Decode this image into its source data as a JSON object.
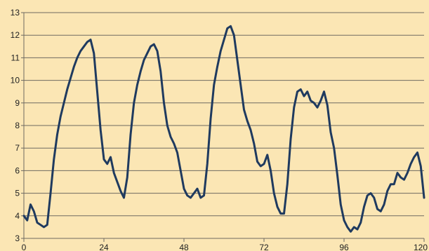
{
  "chart_data": {
    "type": "line",
    "title": "",
    "xlabel": "",
    "ylabel": "",
    "xlim": [
      0,
      120
    ],
    "ylim": [
      3,
      13
    ],
    "x_ticks": [
      {
        "value": 0,
        "label": "0"
      },
      {
        "value": 24,
        "label": "24"
      },
      {
        "value": 48,
        "label": "48"
      },
      {
        "value": 72,
        "label": "72"
      },
      {
        "value": 96,
        "label": "96"
      },
      {
        "value": 120,
        "label": "120"
      }
    ],
    "y_ticks": [
      {
        "value": 3,
        "label": "3"
      },
      {
        "value": 4,
        "label": "4"
      },
      {
        "value": 5,
        "label": "5"
      },
      {
        "value": 6,
        "label": "6"
      },
      {
        "value": 7,
        "label": "7"
      },
      {
        "value": 8,
        "label": "8"
      },
      {
        "value": 9,
        "label": "9"
      },
      {
        "value": 10,
        "label": "10"
      },
      {
        "value": 11,
        "label": "11"
      },
      {
        "value": 12,
        "label": "12"
      },
      {
        "value": 13,
        "label": "13"
      }
    ],
    "grid": true,
    "legend": "none",
    "colors": {
      "background": "#fbe6b4",
      "series": "#1f3a5f",
      "grid": "#6f6a61"
    },
    "series": [
      {
        "x": [
          0,
          1,
          2,
          3,
          4,
          5,
          6,
          7,
          8,
          9,
          10,
          11,
          12,
          13,
          14,
          15,
          16,
          17,
          18,
          19,
          20,
          21,
          22,
          23,
          24,
          25,
          26,
          27,
          28,
          29,
          30,
          31,
          32,
          33,
          34,
          35,
          36,
          37,
          38,
          39,
          40,
          41,
          42,
          43,
          44,
          45,
          46,
          47,
          48,
          49,
          50,
          51,
          52,
          53,
          54,
          55,
          56,
          57,
          58,
          59,
          60,
          61,
          62,
          63,
          64,
          65,
          66,
          67,
          68,
          69,
          70,
          71,
          72,
          73,
          74,
          75,
          76,
          77,
          78,
          79,
          80,
          81,
          82,
          83,
          84,
          85,
          86,
          87,
          88,
          89,
          90,
          91,
          92,
          93,
          94,
          95,
          96,
          97,
          98,
          99,
          100,
          101,
          102,
          103,
          104,
          105,
          106,
          107,
          108,
          109,
          110,
          111,
          112,
          113,
          114,
          115,
          116,
          117,
          118,
          119,
          120
        ],
        "values": [
          4.0,
          3.8,
          4.5,
          4.2,
          3.7,
          3.6,
          3.5,
          3.6,
          5.0,
          6.5,
          7.6,
          8.4,
          9.0,
          9.6,
          10.1,
          10.6,
          11.0,
          11.3,
          11.5,
          11.7,
          11.8,
          11.2,
          9.5,
          7.8,
          6.5,
          6.3,
          6.6,
          5.9,
          5.5,
          5.1,
          4.8,
          5.7,
          7.6,
          9.0,
          9.8,
          10.4,
          10.9,
          11.2,
          11.5,
          11.6,
          11.3,
          10.4,
          9.0,
          8.0,
          7.5,
          7.2,
          6.8,
          6.0,
          5.2,
          4.9,
          4.8,
          5.0,
          5.2,
          4.8,
          4.9,
          6.3,
          8.3,
          9.8,
          10.6,
          11.3,
          11.8,
          12.3,
          12.4,
          12.0,
          10.9,
          9.8,
          8.7,
          8.2,
          7.8,
          7.2,
          6.4,
          6.2,
          6.3,
          6.7,
          6.0,
          5.0,
          4.4,
          4.1,
          4.1,
          5.4,
          7.4,
          8.8,
          9.5,
          9.6,
          9.3,
          9.5,
          9.1,
          9.0,
          8.8,
          9.1,
          9.5,
          8.9,
          7.7,
          7.0,
          5.8,
          4.5,
          3.8,
          3.5,
          3.3,
          3.5,
          3.4,
          3.7,
          4.4,
          4.9,
          5.0,
          4.8,
          4.3,
          4.2,
          4.5,
          5.1,
          5.4,
          5.4,
          5.9,
          5.7,
          5.6,
          5.9,
          6.3,
          6.6,
          6.8,
          6.2,
          4.8
        ]
      }
    ]
  }
}
